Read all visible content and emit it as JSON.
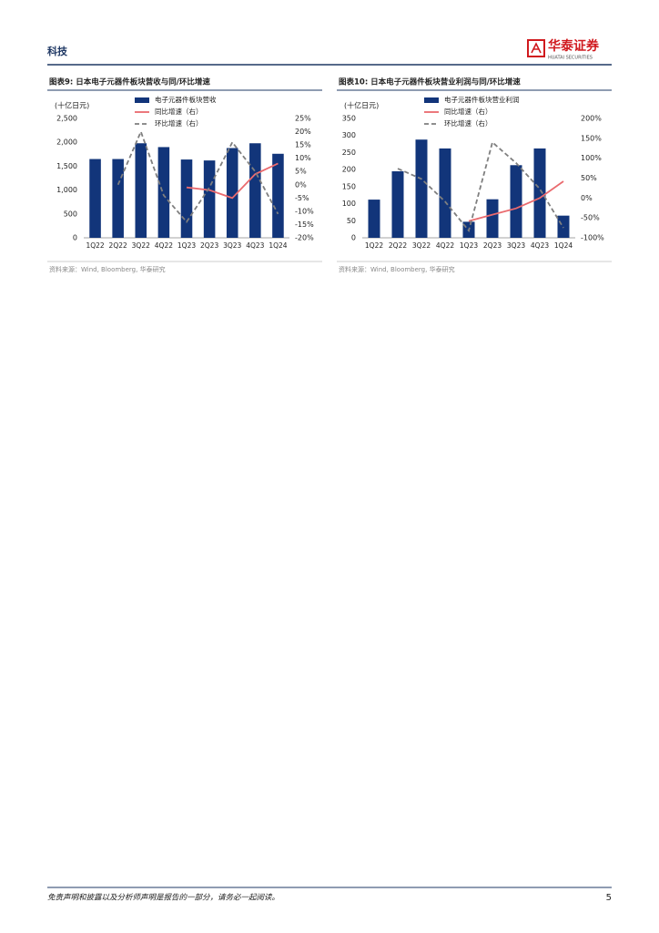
{
  "header": {
    "section": "科技",
    "logo_cn": "华泰证券",
    "logo_en": "HUATAI SECURITIES"
  },
  "chart_data": [
    {
      "type": "bar",
      "title": "图表9:  日本电子元器件板块营收与同/环比增速",
      "unit_label": "(十亿日元)",
      "categories": [
        "1Q22",
        "2Q22",
        "3Q22",
        "4Q22",
        "1Q23",
        "2Q23",
        "3Q23",
        "4Q23",
        "1Q24"
      ],
      "series": [
        {
          "name": "电子元器件板块营收",
          "type": "bar",
          "color": "#12357a",
          "values": [
            1650,
            1650,
            1980,
            1900,
            1640,
            1620,
            1880,
            1980,
            1760
          ]
        },
        {
          "name": "同比增速（右）",
          "type": "line",
          "color": "#ea6a6e",
          "axis": "y2",
          "values": [
            null,
            null,
            null,
            null,
            -1,
            -2,
            -5,
            4,
            8
          ]
        },
        {
          "name": "环比增速（右）",
          "type": "line",
          "color": "#7f7f7f",
          "dashed": true,
          "axis": "y2",
          "values": [
            null,
            0,
            20,
            -4,
            -14,
            -1,
            16,
            5,
            -11
          ]
        }
      ],
      "ylim": [
        0,
        2500
      ],
      "yticks": [
        0,
        500,
        {
          "value": 1000,
          "label": "1,000"
        },
        {
          "value": 1500,
          "label": "1,500"
        },
        {
          "value": 2000,
          "label": "2,000"
        },
        {
          "value": 2500,
          "label": "2,500"
        }
      ],
      "y2lim": [
        -20,
        25
      ],
      "y2ticks": [
        {
          "value": -20,
          "label": "-20%"
        },
        {
          "value": -15,
          "label": "-15%"
        },
        {
          "value": -10,
          "label": "-10%"
        },
        {
          "value": -5,
          "label": "-5%"
        },
        {
          "value": 0,
          "label": "0%"
        },
        {
          "value": 5,
          "label": "5%"
        },
        {
          "value": 10,
          "label": "10%"
        },
        {
          "value": 15,
          "label": "15%"
        },
        {
          "value": 20,
          "label": "20%"
        },
        {
          "value": 25,
          "label": "25%"
        }
      ],
      "source": "资料来源：Wind, Bloomberg, 华泰研究"
    },
    {
      "type": "bar",
      "title": "图表10:  日本电子元器件板块营业利润与同/环比增速",
      "unit_label": "(十亿日元)",
      "categories": [
        "1Q22",
        "2Q22",
        "3Q22",
        "4Q22",
        "1Q23",
        "2Q23",
        "3Q23",
        "4Q23",
        "1Q24"
      ],
      "series": [
        {
          "name": "电子元器件板块营业利润",
          "type": "bar",
          "color": "#12357a",
          "values": [
            112,
            195,
            288,
            262,
            47,
            113,
            213,
            262,
            65
          ]
        },
        {
          "name": "同比增速（右）",
          "type": "line",
          "color": "#ea6a6e",
          "axis": "y2",
          "values": [
            null,
            null,
            null,
            null,
            -58,
            -42,
            -26,
            0,
            42
          ]
        },
        {
          "name": "环比增速（右）",
          "type": "line",
          "color": "#7f7f7f",
          "dashed": true,
          "axis": "y2",
          "values": [
            null,
            74,
            48,
            -9,
            -82,
            140,
            88,
            23,
            -75
          ]
        }
      ],
      "ylim": [
        0,
        350
      ],
      "yticks": [
        0,
        50,
        100,
        150,
        200,
        250,
        300,
        350
      ],
      "y2lim": [
        -100,
        200
      ],
      "y2ticks": [
        {
          "value": -100,
          "label": "-100%"
        },
        {
          "value": -50,
          "label": "-50%"
        },
        {
          "value": 0,
          "label": "0%"
        },
        {
          "value": 50,
          "label": "50%"
        },
        {
          "value": 100,
          "label": "100%"
        },
        {
          "value": 150,
          "label": "150%"
        },
        {
          "value": 200,
          "label": "200%"
        }
      ],
      "source": "资料来源：Wind, Bloomberg, 华泰研究"
    }
  ],
  "footer": {
    "disclaimer": "免责声明和披露以及分析师声明是报告的一部分，请务必一起阅读。",
    "page": "5"
  }
}
